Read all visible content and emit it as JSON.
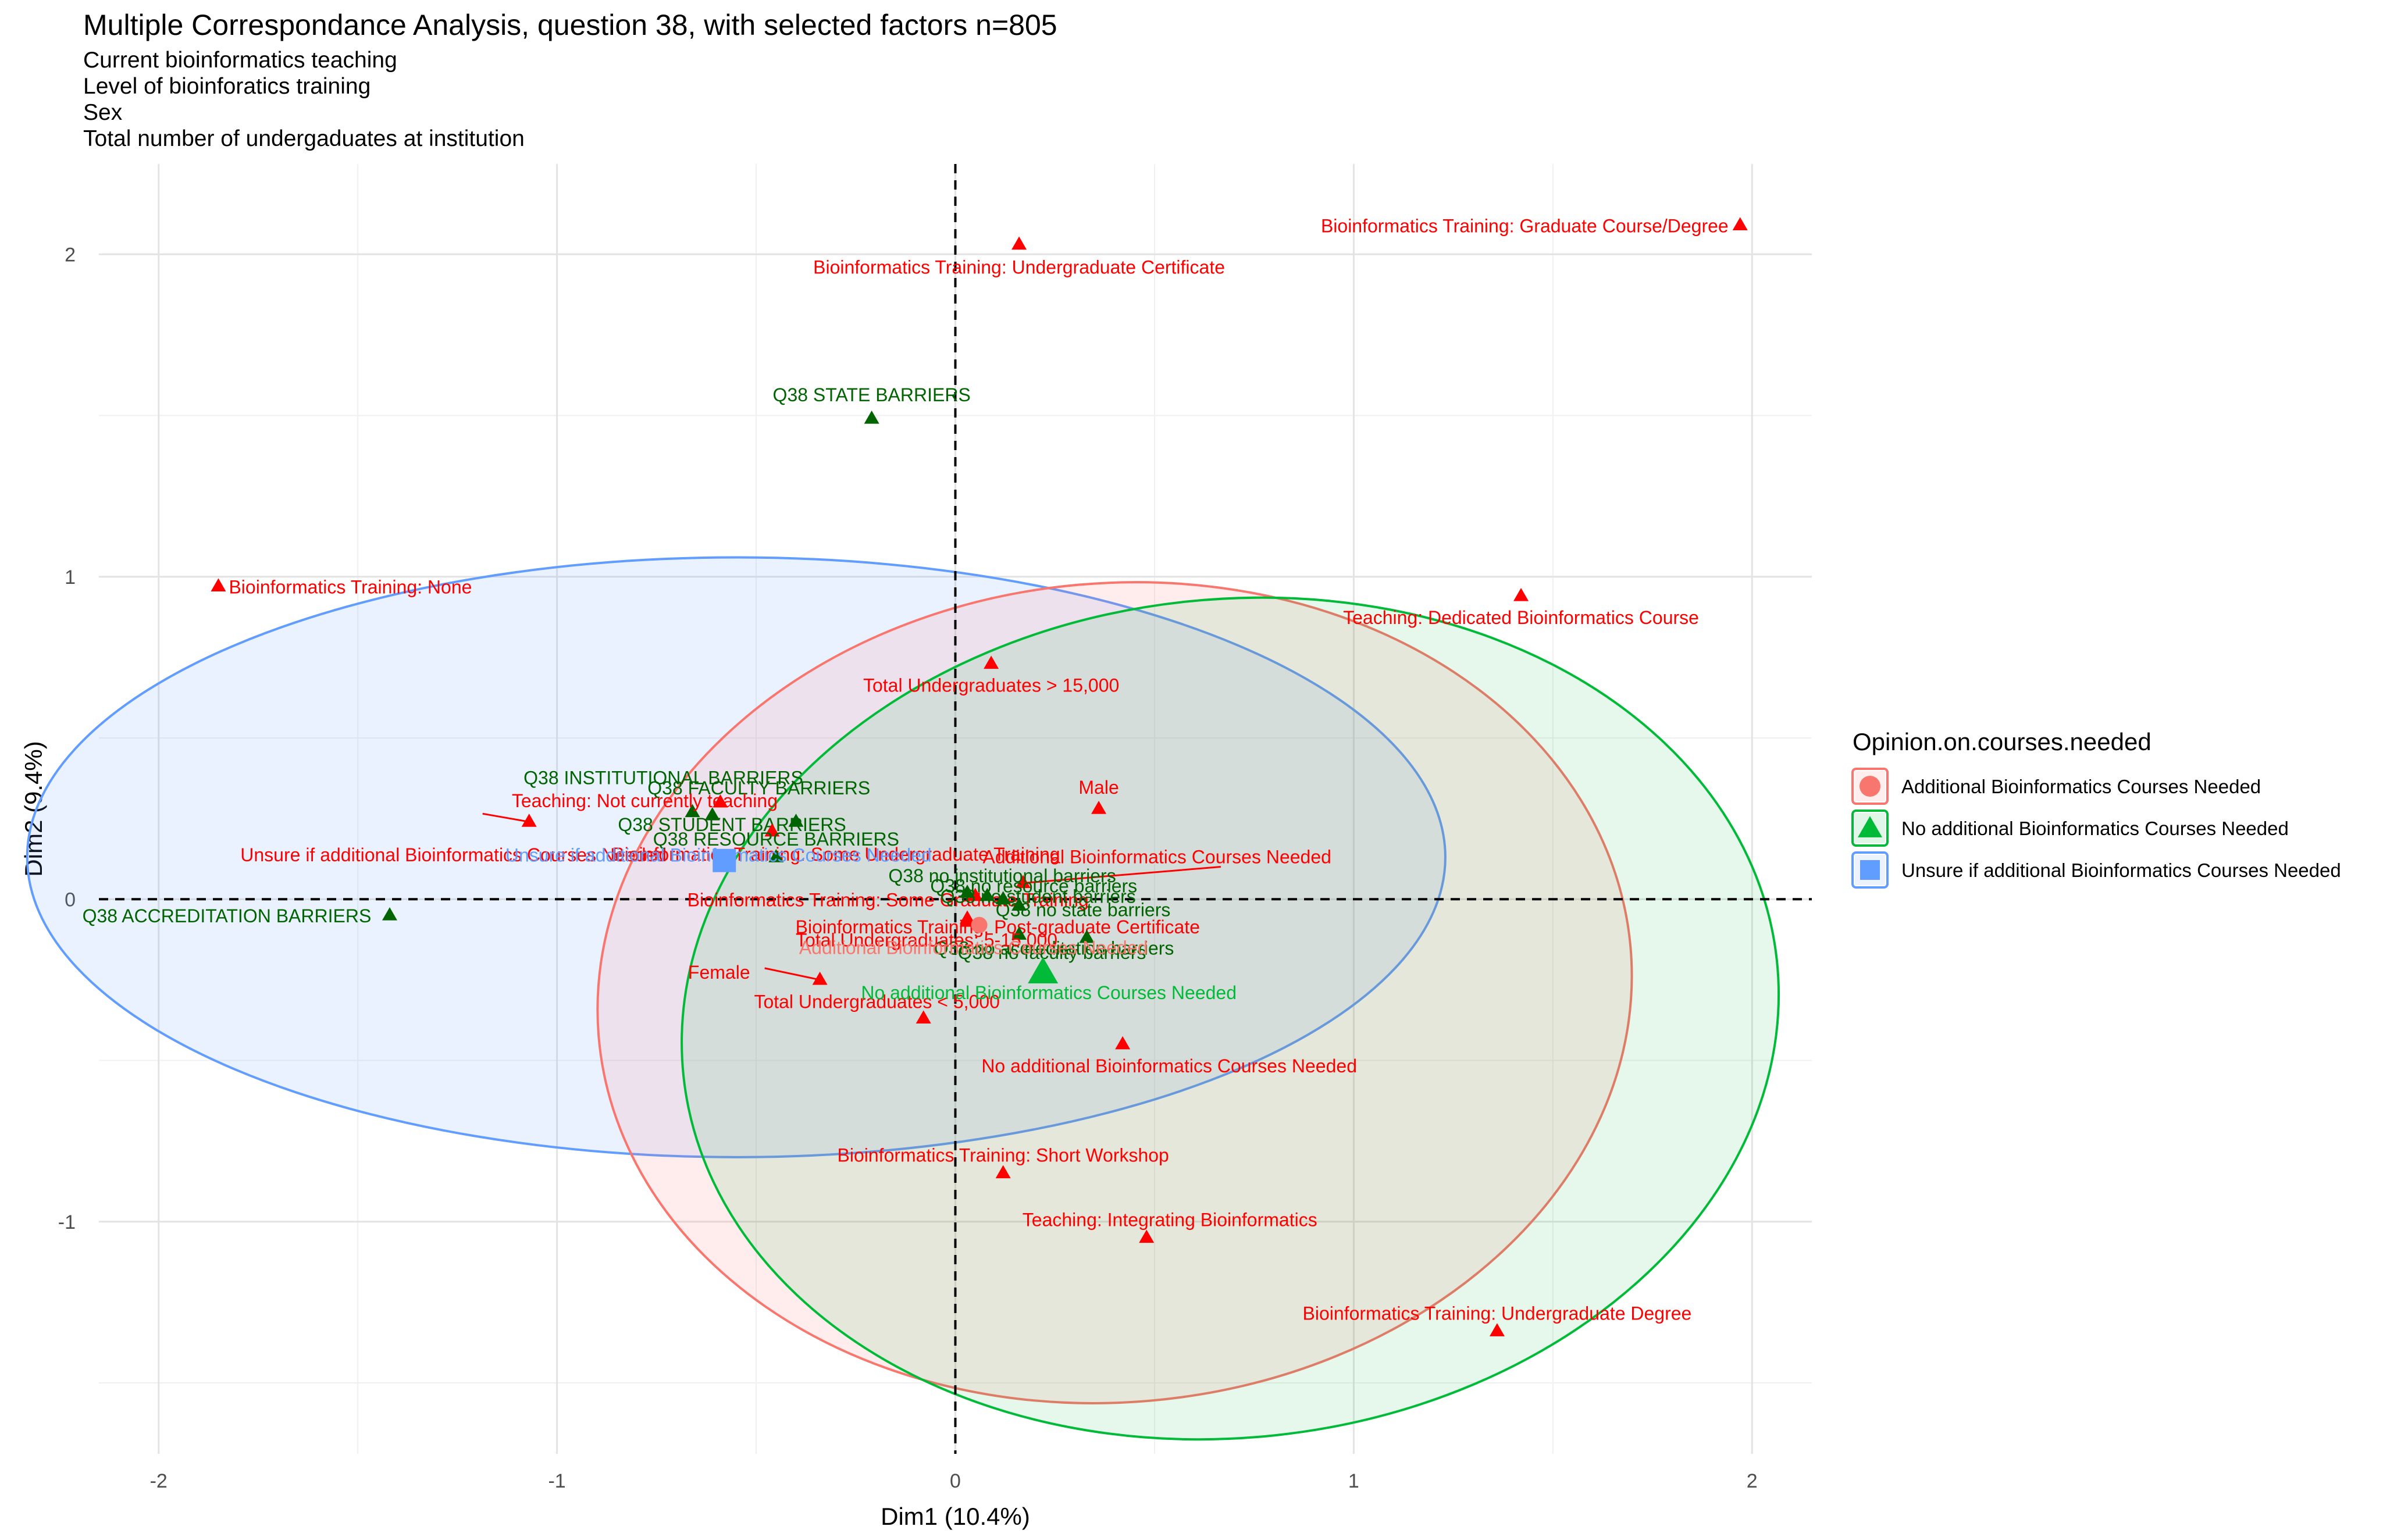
{
  "chart_data": {
    "type": "scatter",
    "title": "Multiple Correspondance Analysis, question 38, with selected factors n=805",
    "subtitle_lines": [
      "Current bioinformatics teaching",
      "Level of bioinforatics training",
      "Sex",
      "Total number of undergaduates at institution"
    ],
    "xlabel": "Dim1 (10.4%)",
    "ylabel": "Dim2 (9.4%)",
    "xlim": [
      -2.15,
      2.15
    ],
    "ylim": [
      -1.72,
      2.28
    ],
    "x_ticks": [
      "-2",
      "-1",
      "0",
      "1",
      "2"
    ],
    "y_ticks": [
      "-1",
      "0",
      "1",
      "2"
    ],
    "grid": true,
    "reference_lines": {
      "x": 0,
      "y": 0,
      "style": "dashed"
    },
    "legend": {
      "title": "Opinion.on.courses.needed",
      "placement": "right",
      "items": [
        {
          "label": "Additional Bioinformatics Courses Needed",
          "color": "#F8766D",
          "shape": "circle"
        },
        {
          "label": "No additional Bioinformatics Courses Needed",
          "color": "#00BA38",
          "shape": "triangle"
        },
        {
          "label": "Unsure if additional Bioinformatics Courses Needed",
          "color": "#619CFF",
          "shape": "square"
        }
      ]
    },
    "colors": {
      "variable_category": "#FF0000",
      "barrier_category": "#006400",
      "group_red": "#F8766D",
      "group_green": "#00BA38",
      "group_blue": "#619CFF"
    },
    "ellipses": [
      {
        "group": "Unsure if additional Bioinformatics Courses Needed",
        "center": [
          -0.55,
          0.13
        ],
        "rx": 1.78,
        "ry": 0.93,
        "color": "#619CFF"
      },
      {
        "group": "Additional Bioinformatics Courses Needed",
        "center": [
          0.4,
          -0.29
        ],
        "rx": 1.3,
        "ry": 1.27,
        "angle": -5,
        "color": "#F8766D"
      },
      {
        "group": "No additional Bioinformatics Courses Needed",
        "center": [
          0.69,
          -0.37
        ],
        "rx": 1.38,
        "ry": 1.3,
        "angle": -6,
        "color": "#00BA38"
      }
    ],
    "group_centroids": [
      {
        "label": "Unsure if additional Bioinformatics Courses Needed",
        "x": -0.58,
        "y": 0.12,
        "shape": "square",
        "color": "#619CFF"
      },
      {
        "label": "Additional Bioinformatics Courses Needed",
        "x": 0.06,
        "y": -0.08,
        "shape": "circle",
        "color": "#F8766D"
      },
      {
        "label": "No additional Bioinformatics Courses Needed",
        "x": 0.22,
        "y": -0.23,
        "shape": "triangle",
        "color": "#00BA38"
      }
    ],
    "points": [
      {
        "label": "Bioinformatics Training: Graduate Course/Degree",
        "x": 1.97,
        "y": 2.09,
        "group": "variable"
      },
      {
        "label": "Bioinformatics Training: Undergraduate Certificate",
        "x": 0.16,
        "y": 2.03,
        "group": "variable"
      },
      {
        "label": "Q38 STATE BARRIERS",
        "x": -0.21,
        "y": 1.49,
        "group": "barrier"
      },
      {
        "label": "Bioinformatics Training: None",
        "x": -1.85,
        "y": 0.97,
        "group": "variable"
      },
      {
        "label": "Teaching: Dedicated Bioinformatics Course",
        "x": 1.42,
        "y": 0.94,
        "group": "variable"
      },
      {
        "label": "Total Undergraduates > 15,000",
        "x": 0.09,
        "y": 0.73,
        "group": "variable"
      },
      {
        "label": "Male",
        "x": 0.36,
        "y": 0.28,
        "group": "variable"
      },
      {
        "label": "Q38 INSTITUTIONAL BARRIERS",
        "x": -0.66,
        "y": 0.27,
        "group": "barrier"
      },
      {
        "label": "Q38 FACULTY BARRIERS",
        "x": -0.61,
        "y": 0.26,
        "group": "barrier"
      },
      {
        "label": "Q38 STUDENT BARRIERS",
        "x": -0.4,
        "y": 0.24,
        "group": "barrier"
      },
      {
        "label": "Teaching: Not currently teaching",
        "x": -0.59,
        "y": 0.3,
        "group": "variable"
      },
      {
        "label": "Unsure if additional Bioinformatics Courses Needed",
        "x": -1.07,
        "y": 0.24,
        "group": "variable"
      },
      {
        "label": "Bioinformatics Training: Some Undergraduate Training",
        "x": -0.46,
        "y": 0.21,
        "group": "variable"
      },
      {
        "label": "Q38 RESOURCE BARRIERS",
        "x": -0.45,
        "y": 0.13,
        "group": "barrier"
      },
      {
        "label": "Additional Bioinformatics Courses Needed",
        "x": 0.17,
        "y": 0.05,
        "group": "variable"
      },
      {
        "label": "Q38 ACCREDITATION BARRIERS",
        "x": -1.42,
        "y": -0.05,
        "group": "barrier"
      },
      {
        "label": "Bioinformatics Training: Some Graduate Training",
        "x": 0.05,
        "y": 0.01,
        "group": "variable"
      },
      {
        "label": "Q38 no institutional barriers",
        "x": 0.03,
        "y": 0.02,
        "group": "barrier"
      },
      {
        "label": "Q38 no resource barriers",
        "x": 0.08,
        "y": 0.01,
        "group": "barrier"
      },
      {
        "label": "Q38 no student barriers",
        "x": 0.12,
        "y": 0.0,
        "group": "barrier"
      },
      {
        "label": "Q38 no state barriers",
        "x": 0.16,
        "y": -0.02,
        "group": "barrier"
      },
      {
        "label": "Bioinformatics Training: Post-graduate Certificate",
        "x": 0.03,
        "y": -0.07,
        "group": "variable"
      },
      {
        "label": "Q38 no accreditation barriers",
        "x": 0.16,
        "y": -0.11,
        "group": "barrier"
      },
      {
        "label": "Q38 no faculty barriers",
        "x": 0.33,
        "y": -0.12,
        "group": "barrier"
      },
      {
        "label": "Total Undergraduates: 5-15,000",
        "x": 0.03,
        "y": -0.06,
        "group": "variable"
      },
      {
        "label": "Female",
        "x": -0.34,
        "y": -0.25,
        "group": "variable"
      },
      {
        "label": "Total Undergraduates < 5,000",
        "x": -0.08,
        "y": -0.37,
        "group": "variable"
      },
      {
        "label": "No additional Bioinformatics Courses Needed",
        "x": 0.42,
        "y": -0.45,
        "group": "variable"
      },
      {
        "label": "Bioinformatics Training: Short Workshop",
        "x": 0.12,
        "y": -0.85,
        "group": "variable"
      },
      {
        "label": "Teaching: Integrating Bioinformatics",
        "x": 0.48,
        "y": -1.05,
        "group": "variable"
      },
      {
        "label": "Bioinformatics Training: Undergraduate Degree",
        "x": 1.36,
        "y": -1.34,
        "group": "variable"
      }
    ]
  }
}
